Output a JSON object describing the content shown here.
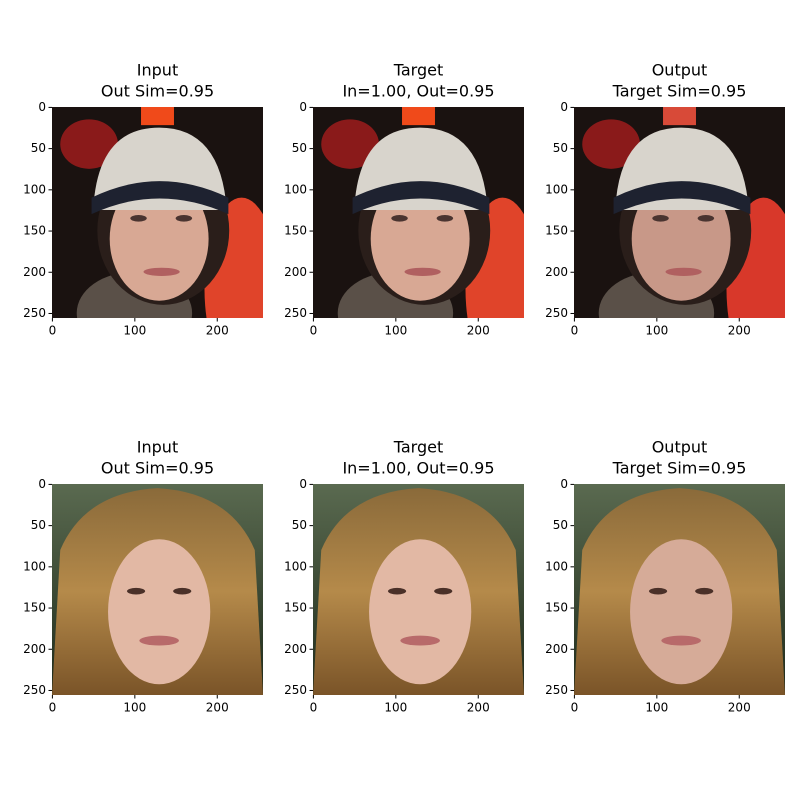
{
  "chart_data": [
    {
      "type": "image",
      "title": [
        "Input",
        "Out Sim=0.95"
      ],
      "xlim": [
        -0.5,
        255.5
      ],
      "ylim": [
        255.5,
        -0.5
      ],
      "xticks": [
        0,
        100,
        200
      ],
      "yticks": [
        0,
        50,
        100,
        150,
        200,
        250
      ]
    },
    {
      "type": "image",
      "title": [
        "Target",
        "In=1.00, Out=0.95"
      ],
      "xlim": [
        -0.5,
        255.5
      ],
      "ylim": [
        255.5,
        -0.5
      ],
      "xticks": [
        0,
        100,
        200
      ],
      "yticks": [
        0,
        50,
        100,
        150,
        200,
        250
      ]
    },
    {
      "type": "image",
      "title": [
        "Output",
        "Target Sim=0.95"
      ],
      "xlim": [
        -0.5,
        255.5
      ],
      "ylim": [
        255.5,
        -0.5
      ],
      "xticks": [
        0,
        100,
        200
      ],
      "yticks": [
        0,
        50,
        100,
        150,
        200,
        250
      ]
    },
    {
      "type": "image",
      "title": [
        "Input",
        "Out Sim=0.95"
      ],
      "xlim": [
        -0.5,
        255.5
      ],
      "ylim": [
        255.5,
        -0.5
      ],
      "xticks": [
        0,
        100,
        200
      ],
      "yticks": [
        0,
        50,
        100,
        150,
        200,
        250
      ]
    },
    {
      "type": "image",
      "title": [
        "Target",
        "In=1.00, Out=0.95"
      ],
      "xlim": [
        -0.5,
        255.5
      ],
      "ylim": [
        255.5,
        -0.5
      ],
      "xticks": [
        0,
        100,
        200
      ],
      "yticks": [
        0,
        50,
        100,
        150,
        200,
        250
      ]
    },
    {
      "type": "image",
      "title": [
        "Output",
        "Target Sim=0.95"
      ],
      "xlim": [
        -0.5,
        255.5
      ],
      "ylim": [
        255.5,
        -0.5
      ],
      "xticks": [
        0,
        100,
        200
      ],
      "yticks": [
        0,
        50,
        100,
        150,
        200,
        250
      ]
    }
  ]
}
